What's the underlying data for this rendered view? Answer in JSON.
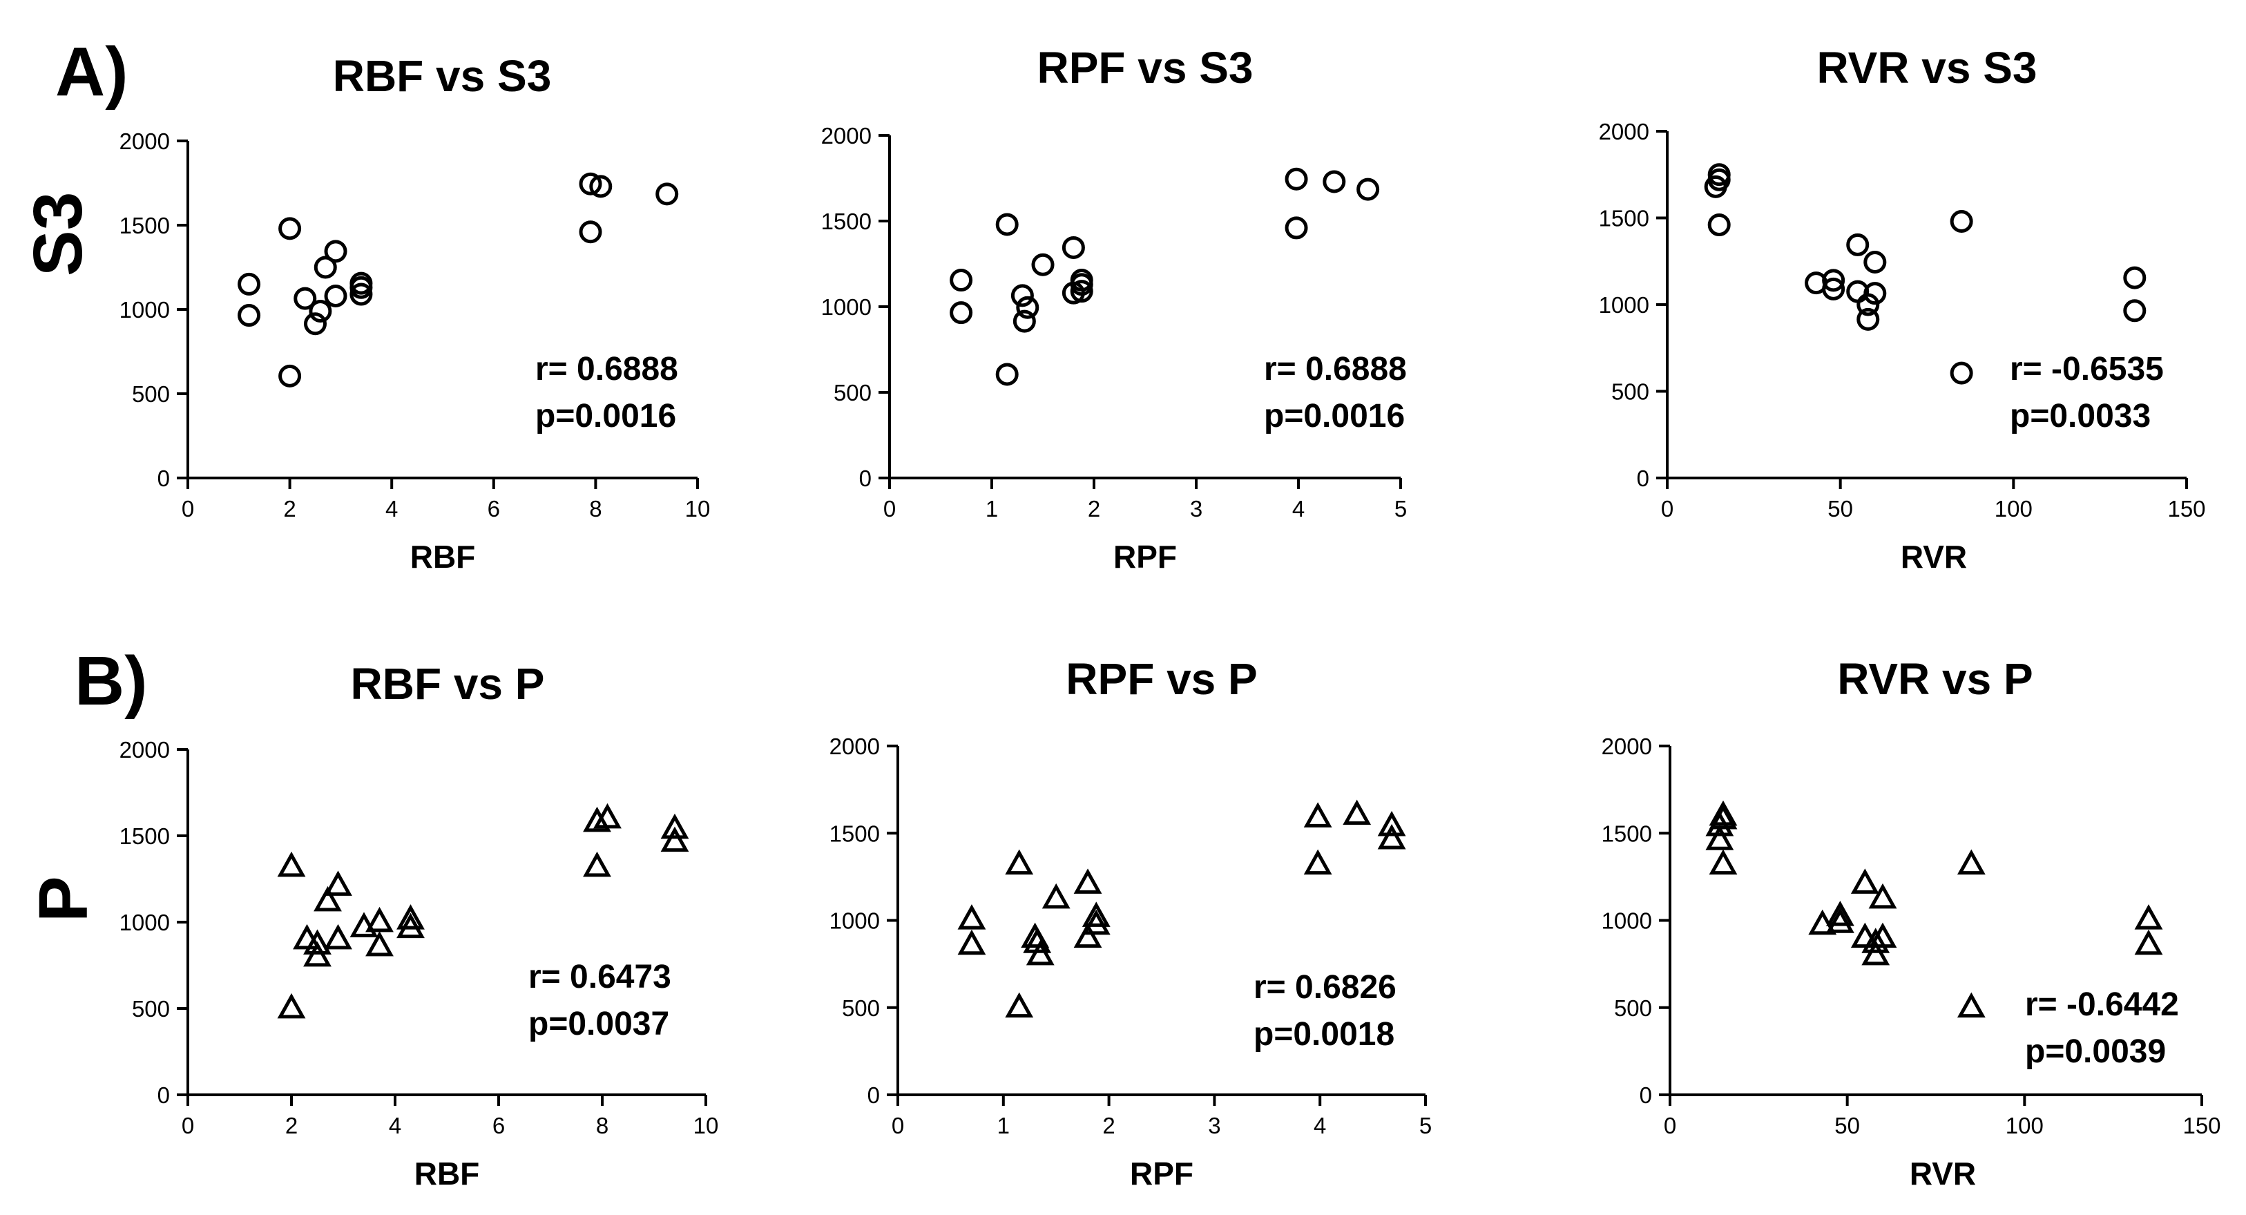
{
  "panel_labels": {
    "a": "A)",
    "b": "B)"
  },
  "row_labels": {
    "a": "S3",
    "b": "P"
  },
  "chart_data": [
    {
      "type": "scatter",
      "marker": "circle",
      "title": "RBF vs S3",
      "xlabel": "RBF",
      "ylabel": "S3",
      "xlim": [
        0,
        10
      ],
      "ylim": [
        0,
        2000
      ],
      "xticks": [
        0,
        2,
        4,
        6,
        8,
        10
      ],
      "yticks": [
        0,
        500,
        1000,
        1500,
        2000
      ],
      "points": [
        [
          1.2,
          1150
        ],
        [
          1.2,
          965
        ],
        [
          2.0,
          1480
        ],
        [
          2.0,
          605
        ],
        [
          2.3,
          1065
        ],
        [
          2.5,
          915
        ],
        [
          2.6,
          990
        ],
        [
          2.7,
          1250
        ],
        [
          2.9,
          1345
        ],
        [
          2.9,
          1080
        ],
        [
          3.4,
          1155
        ],
        [
          3.4,
          1130
        ],
        [
          3.4,
          1090
        ],
        [
          7.9,
          1745
        ],
        [
          8.1,
          1730
        ],
        [
          7.9,
          1460
        ],
        [
          9.4,
          1685
        ]
      ],
      "stats": {
        "r": "r= 0.6888",
        "p": "p=0.0016"
      }
    },
    {
      "type": "scatter",
      "marker": "circle",
      "title": "RPF vs S3",
      "xlabel": "RPF",
      "ylabel": "S3",
      "xlim": [
        0,
        5
      ],
      "ylim": [
        0,
        2000
      ],
      "xticks": [
        0,
        1,
        2,
        3,
        4,
        5
      ],
      "yticks": [
        0,
        500,
        1000,
        1500,
        2000
      ],
      "points": [
        [
          0.7,
          1155
        ],
        [
          0.7,
          965
        ],
        [
          1.15,
          1480
        ],
        [
          1.15,
          605
        ],
        [
          1.3,
          1065
        ],
        [
          1.32,
          915
        ],
        [
          1.35,
          995
        ],
        [
          1.5,
          1245
        ],
        [
          1.8,
          1345
        ],
        [
          1.8,
          1080
        ],
        [
          1.88,
          1155
        ],
        [
          1.88,
          1130
        ],
        [
          1.88,
          1090
        ],
        [
          3.98,
          1745
        ],
        [
          4.35,
          1730
        ],
        [
          3.98,
          1460
        ],
        [
          4.68,
          1685
        ]
      ],
      "stats": {
        "r": "r= 0.6888",
        "p": "p=0.0016"
      }
    },
    {
      "type": "scatter",
      "marker": "circle",
      "title": "RVR vs S3",
      "xlabel": "RVR",
      "ylabel": "S3",
      "xlim": [
        0,
        150
      ],
      "ylim": [
        0,
        2000
      ],
      "xticks": [
        0,
        50,
        100,
        150
      ],
      "yticks": [
        0,
        500,
        1000,
        1500,
        2000
      ],
      "points": [
        [
          14,
          1680
        ],
        [
          15,
          1720
        ],
        [
          15,
          1750
        ],
        [
          15,
          1460
        ],
        [
          43,
          1125
        ],
        [
          48,
          1140
        ],
        [
          48,
          1090
        ],
        [
          55,
          1345
        ],
        [
          55,
          1075
        ],
        [
          58,
          1000
        ],
        [
          58,
          915
        ],
        [
          60,
          1245
        ],
        [
          60,
          1065
        ],
        [
          85,
          1480
        ],
        [
          85,
          605
        ],
        [
          135,
          1155
        ],
        [
          135,
          965
        ]
      ],
      "stats": {
        "r": "r= -0.6535",
        "p": "p=0.0033"
      }
    },
    {
      "type": "scatter",
      "marker": "triangle",
      "title": "RBF vs P",
      "xlabel": "RBF",
      "ylabel": "P",
      "xlim": [
        0,
        10
      ],
      "ylim": [
        0,
        2000
      ],
      "xticks": [
        0,
        2,
        4,
        6,
        8,
        10
      ],
      "yticks": [
        0,
        500,
        1000,
        1500,
        2000
      ],
      "points": [
        [
          2.0,
          1320
        ],
        [
          2.0,
          500
        ],
        [
          2.3,
          900
        ],
        [
          2.5,
          870
        ],
        [
          2.5,
          800
        ],
        [
          2.7,
          1120
        ],
        [
          2.9,
          1210
        ],
        [
          2.9,
          900
        ],
        [
          3.4,
          970
        ],
        [
          3.7,
          1000
        ],
        [
          3.7,
          860
        ],
        [
          4.3,
          1015
        ],
        [
          4.3,
          965
        ],
        [
          7.9,
          1580
        ],
        [
          8.1,
          1600
        ],
        [
          7.9,
          1320
        ],
        [
          9.4,
          1540
        ],
        [
          9.4,
          1465
        ]
      ],
      "stats": {
        "r": "r= 0.6473",
        "p": "p=0.0037"
      }
    },
    {
      "type": "scatter",
      "marker": "triangle",
      "title": "RPF vs P",
      "xlabel": "RPF",
      "ylabel": "P",
      "xlim": [
        0,
        5
      ],
      "ylim": [
        0,
        2000
      ],
      "xticks": [
        0,
        1,
        2,
        3,
        4,
        5
      ],
      "yticks": [
        0,
        500,
        1000,
        1500,
        2000
      ],
      "points": [
        [
          0.7,
          1005
        ],
        [
          0.7,
          860
        ],
        [
          1.15,
          1320
        ],
        [
          1.15,
          500
        ],
        [
          1.3,
          900
        ],
        [
          1.32,
          870
        ],
        [
          1.35,
          800
        ],
        [
          1.5,
          1125
        ],
        [
          1.8,
          1210
        ],
        [
          1.8,
          900
        ],
        [
          1.88,
          1020
        ],
        [
          1.88,
          975
        ],
        [
          3.98,
          1590
        ],
        [
          4.35,
          1605
        ],
        [
          3.98,
          1320
        ],
        [
          4.68,
          1540
        ],
        [
          4.68,
          1465
        ]
      ],
      "stats": {
        "r": "r= 0.6826",
        "p": "p=0.0018"
      }
    },
    {
      "type": "scatter",
      "marker": "triangle",
      "title": "RVR vs P",
      "xlabel": "RVR",
      "ylabel": "P",
      "xlim": [
        0,
        150
      ],
      "ylim": [
        0,
        2000
      ],
      "xticks": [
        0,
        50,
        100,
        150
      ],
      "yticks": [
        0,
        500,
        1000,
        1500,
        2000
      ],
      "points": [
        [
          14,
          1540
        ],
        [
          15,
          1580
        ],
        [
          15,
          1600
        ],
        [
          14,
          1460
        ],
        [
          15,
          1320
        ],
        [
          43,
          975
        ],
        [
          48,
          1025
        ],
        [
          48,
          985
        ],
        [
          55,
          1210
        ],
        [
          55,
          900
        ],
        [
          58,
          870
        ],
        [
          58,
          800
        ],
        [
          60,
          1125
        ],
        [
          60,
          900
        ],
        [
          85,
          1320
        ],
        [
          85,
          500
        ],
        [
          135,
          1005
        ],
        [
          135,
          860
        ]
      ],
      "stats": {
        "r": "r= -0.6442",
        "p": "p=0.0039"
      }
    }
  ]
}
